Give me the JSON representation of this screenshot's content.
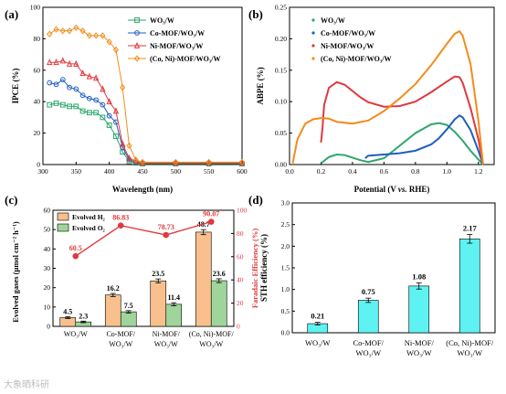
{
  "watermark": "大象晒科研",
  "colors": {
    "wo3": "#2ca66b",
    "co": "#1f5fbf",
    "ni": "#e0393e",
    "coni": "#f28c1a",
    "h2": "#f7c08c",
    "o2": "#9fd59a",
    "fe": "#e0393e",
    "sth": "#5ff2f2"
  },
  "chart_data": [
    {
      "panel": "(a)",
      "type": "line",
      "xlabel": "Wavelength (nm)",
      "ylabel": "IPCE (%)",
      "xlim": [
        300,
        600
      ],
      "ylim": [
        0,
        100
      ],
      "xticks": [
        "300",
        "350",
        "400",
        "450",
        "500",
        "550",
        "600"
      ],
      "yticks": [
        "0",
        "20",
        "40",
        "60",
        "80",
        "100"
      ],
      "legend_position": "top-right",
      "series": [
        {
          "name": "WO₃/W",
          "marker": "square",
          "color": "#2ca66b",
          "x": [
            310,
            320,
            330,
            340,
            350,
            360,
            370,
            380,
            390,
            400,
            410,
            420,
            430,
            440,
            450,
            500,
            550,
            600
          ],
          "y": [
            38,
            39,
            38,
            37,
            37,
            34,
            33,
            33,
            30,
            25,
            18,
            8,
            2,
            1,
            0.5,
            0.5,
            0.5,
            0.5
          ]
        },
        {
          "name": "Co-MOF/WO₃/W",
          "marker": "circle",
          "color": "#1f5fbf",
          "x": [
            310,
            320,
            330,
            340,
            350,
            360,
            370,
            380,
            390,
            400,
            410,
            420,
            430,
            440,
            450,
            500,
            550,
            600
          ],
          "y": [
            52,
            51,
            54,
            49,
            48,
            44,
            42,
            41,
            38,
            31,
            27,
            11,
            3,
            1.5,
            1,
            1,
            1,
            1
          ]
        },
        {
          "name": "Ni-MOF/WO₃/W",
          "marker": "triangle",
          "color": "#e0393e",
          "x": [
            310,
            320,
            330,
            340,
            350,
            360,
            370,
            380,
            390,
            400,
            410,
            420,
            430,
            440,
            450,
            500,
            550,
            600
          ],
          "y": [
            65,
            65,
            66,
            64,
            64,
            58,
            56,
            55,
            48,
            40,
            34,
            13,
            4,
            2,
            1,
            1,
            1,
            1
          ]
        },
        {
          "name": "(Co, Ni)-MOF/WO₃/W",
          "marker": "diamond",
          "color": "#f28c1a",
          "x": [
            310,
            320,
            330,
            340,
            350,
            360,
            370,
            380,
            390,
            400,
            410,
            420,
            430,
            440,
            450,
            500,
            550,
            600
          ],
          "y": [
            83,
            86,
            85,
            85,
            87,
            85,
            82,
            82,
            82,
            78,
            73,
            49,
            12,
            3,
            1.5,
            1.5,
            1.5,
            1.5
          ]
        }
      ]
    },
    {
      "panel": "(b)",
      "type": "line",
      "xlabel_parts": [
        "Potential (V ",
        "vs.",
        " RHE)"
      ],
      "ylabel": "ABPE (%)",
      "xlim": [
        0,
        1.3
      ],
      "ylim": [
        0,
        0.25
      ],
      "xticks": [
        "0.0",
        "0.2",
        "0.4",
        "0.6",
        "0.8",
        "1.0",
        "1.2"
      ],
      "yticks": [
        "0.00",
        "0.05",
        "0.10",
        "0.15",
        "0.20",
        "0.25"
      ],
      "legend_position": "top-left",
      "series": [
        {
          "name": "WO₃/W",
          "color": "#2ca66b",
          "x": [
            0.2,
            0.22,
            0.25,
            0.3,
            0.35,
            0.4,
            0.45,
            0.5,
            0.6,
            0.7,
            0.8,
            0.9,
            0.95,
            1.0,
            1.05,
            1.1,
            1.15,
            1.2,
            1.23
          ],
          "y": [
            0.002,
            0.006,
            0.012,
            0.016,
            0.015,
            0.011,
            0.007,
            0.004,
            0.01,
            0.03,
            0.05,
            0.064,
            0.066,
            0.063,
            0.052,
            0.038,
            0.022,
            0.008,
            0
          ]
        },
        {
          "name": "Co-MOF/WO₃/W",
          "color": "#1f5fbf",
          "x": [
            0.48,
            0.5,
            0.6,
            0.7,
            0.8,
            0.9,
            0.95,
            1.0,
            1.05,
            1.08,
            1.1,
            1.15,
            1.2,
            1.23
          ],
          "y": [
            0.01,
            0.014,
            0.016,
            0.018,
            0.022,
            0.032,
            0.042,
            0.056,
            0.072,
            0.078,
            0.075,
            0.055,
            0.022,
            0
          ]
        },
        {
          "name": "Ni-MOF/WO₃/W",
          "color": "#e0393e",
          "x": [
            0.2,
            0.21,
            0.22,
            0.25,
            0.3,
            0.35,
            0.4,
            0.45,
            0.5,
            0.6,
            0.7,
            0.8,
            0.9,
            1.0,
            1.05,
            1.08,
            1.1,
            1.15,
            1.2,
            1.23
          ],
          "y": [
            0.035,
            0.06,
            0.095,
            0.122,
            0.131,
            0.127,
            0.117,
            0.107,
            0.099,
            0.092,
            0.093,
            0.1,
            0.115,
            0.132,
            0.14,
            0.139,
            0.13,
            0.09,
            0.04,
            0
          ]
        },
        {
          "name": "(Co, Ni)-MOF/WO₃/W",
          "color": "#f28c1a",
          "x": [
            0.02,
            0.05,
            0.1,
            0.15,
            0.2,
            0.25,
            0.3,
            0.4,
            0.5,
            0.6,
            0.7,
            0.8,
            0.9,
            1.0,
            1.05,
            1.08,
            1.1,
            1.15,
            1.2,
            1.23
          ],
          "y": [
            0.002,
            0.04,
            0.065,
            0.072,
            0.074,
            0.073,
            0.068,
            0.065,
            0.07,
            0.085,
            0.105,
            0.128,
            0.158,
            0.192,
            0.208,
            0.212,
            0.205,
            0.16,
            0.07,
            0
          ]
        }
      ]
    },
    {
      "panel": "(c)",
      "type": "bar",
      "categories": [
        [
          "WO₃/W"
        ],
        [
          "Co-MOF/",
          "WO₃/W"
        ],
        [
          "Ni-MOF/",
          "WO₃/W"
        ],
        [
          "(Co, Ni)-MOF/",
          "WO₃/W"
        ]
      ],
      "ylabel": "Evolved gases (μmol cm⁻² h⁻¹)",
      "y2label": "Faradaic Efficiency (%)",
      "ylim": [
        0,
        60
      ],
      "y2lim": [
        0,
        100
      ],
      "yticks": [
        "0",
        "10",
        "20",
        "30",
        "40",
        "50",
        "60"
      ],
      "y2ticks": [
        "0",
        "20",
        "40",
        "60",
        "80",
        "100"
      ],
      "legend_position": "top-left",
      "series": [
        {
          "name": "Evolved H₂",
          "values": [
            4.5,
            16.2,
            23.5,
            48.7
          ],
          "labels": [
            "4.5",
            "16.2",
            "23.5",
            "48.7"
          ],
          "errors": [
            0.5,
            0.8,
            1,
            1.3
          ],
          "color": "#f7c08c"
        },
        {
          "name": "Evolved O₂",
          "values": [
            2.3,
            7.5,
            11.4,
            23.6
          ],
          "labels": [
            "2.3",
            "7.5",
            "11.4",
            "23.6"
          ],
          "errors": [
            0.4,
            0.6,
            0.8,
            1
          ],
          "color": "#9fd59a"
        }
      ],
      "faradaic_efficiency": {
        "values": [
          60.5,
          86.83,
          78.73,
          90.07
        ],
        "labels": [
          "60.5",
          "86.83",
          "78.73",
          "90.07"
        ],
        "color": "#e0393e"
      }
    },
    {
      "panel": "(d)",
      "type": "bar",
      "categories": [
        [
          "WO₃/W"
        ],
        [
          "Co-MOF/",
          "WO₃/W"
        ],
        [
          "Ni-MOF/",
          "WO₃/W"
        ],
        [
          "(Co, Ni)-MOF/",
          "WO₃/W"
        ]
      ],
      "ylabel": "STH efficiency (%)",
      "ylim": [
        0,
        3.0
      ],
      "yticks": [
        "0.0",
        "0.5",
        "1.0",
        "1.5",
        "2.0",
        "2.5",
        "3.0"
      ],
      "values": [
        0.21,
        0.75,
        1.08,
        2.17
      ],
      "labels": [
        "0.21",
        "0.75",
        "1.08",
        "2.17"
      ],
      "errors": [
        0.03,
        0.05,
        0.07,
        0.1
      ],
      "color": "#5ff2f2"
    }
  ]
}
